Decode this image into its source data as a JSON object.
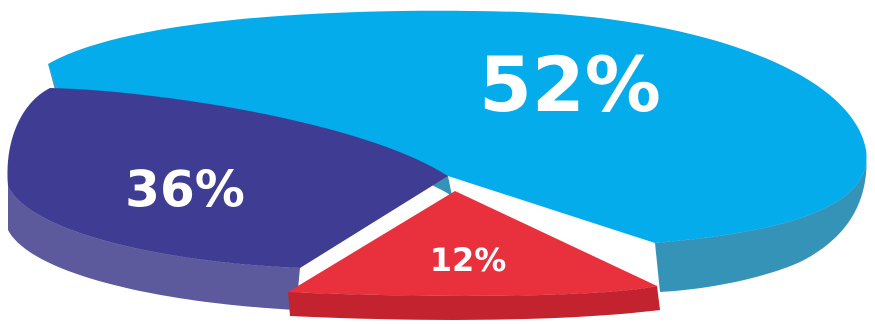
{
  "chart_data": {
    "type": "pie",
    "style": "3d-exploded",
    "title": "",
    "slices": [
      {
        "label": "52%",
        "value": 52,
        "color": "#05aceb",
        "side_color": "#3593b8"
      },
      {
        "label": "36%",
        "value": 36,
        "color": "#3f3d93",
        "side_color": "#5c5a9c"
      },
      {
        "label": "12%",
        "value": 12,
        "color": "#e8313c",
        "side_color": "#c3232e"
      }
    ]
  }
}
